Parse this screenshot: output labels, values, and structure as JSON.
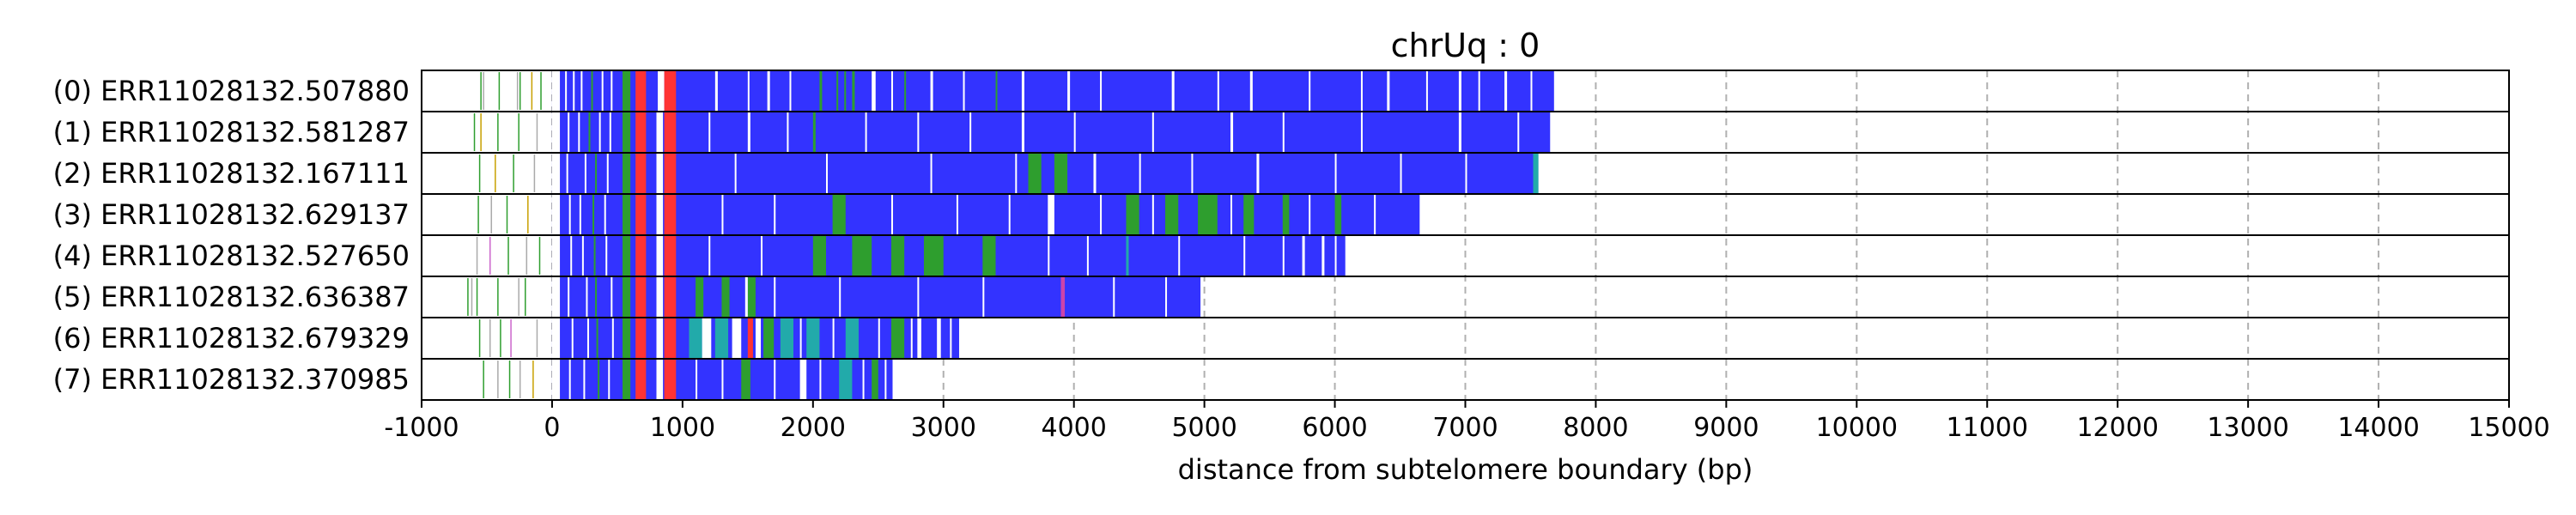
{
  "chart_data": {
    "type": "bar",
    "title": "chrUq : 0",
    "xlabel": "distance from subtelomere boundary (bp)",
    "ylabel": "",
    "xlim": [
      -1000,
      15000
    ],
    "xticks": [
      -1000,
      0,
      1000,
      2000,
      3000,
      4000,
      5000,
      6000,
      7000,
      8000,
      9000,
      10000,
      11000,
      12000,
      13000,
      14000,
      15000
    ],
    "xtick_labels": [
      "-1000",
      "0",
      "1000",
      "2000",
      "3000",
      "4000",
      "5000",
      "6000",
      "7000",
      "8000",
      "9000",
      "10000",
      "11000",
      "12000",
      "13000",
      "14000",
      "15000"
    ],
    "grid": "vertical dashed",
    "colors": {
      "base": "#3333ff",
      "red": "#ff3333",
      "green": "#2e9e2e",
      "teal": "#22aaaa",
      "white": "#ffffff",
      "gray": "#aaaaaa"
    },
    "reads": [
      {
        "label": "(0) ERR11028132.507880",
        "start": 0,
        "end": 7680,
        "pre": [
          [
            -550,
            "green"
          ],
          [
            -530,
            "gray"
          ],
          [
            -410,
            "green"
          ],
          [
            -270,
            "gray"
          ],
          [
            -250,
            "green"
          ],
          [
            -160,
            "#c8a000"
          ],
          [
            -90,
            "green"
          ]
        ],
        "blocks": [
          [
            0,
            60,
            "white"
          ],
          [
            540,
            600,
            "green"
          ],
          [
            640,
            720,
            "red"
          ],
          [
            810,
            860,
            "white"
          ],
          [
            860,
            950,
            "red"
          ],
          [
            1250,
            1270,
            "white"
          ],
          [
            1650,
            1670,
            "white"
          ],
          [
            2050,
            2070,
            "green"
          ],
          [
            2300,
            2320,
            "green"
          ],
          [
            2450,
            2480,
            "white"
          ],
          [
            2900,
            2920,
            "white"
          ],
          [
            3600,
            3620,
            "white"
          ],
          [
            3950,
            3970,
            "white"
          ],
          [
            4750,
            4770,
            "white"
          ],
          [
            5350,
            5370,
            "white"
          ],
          [
            6400,
            6420,
            "white"
          ],
          [
            6950,
            6970,
            "white"
          ],
          [
            7300,
            7320,
            "white"
          ]
        ],
        "lines": [
          [
            100,
            "white"
          ],
          [
            160,
            "white"
          ],
          [
            220,
            "white"
          ],
          [
            300,
            "green"
          ],
          [
            380,
            "white"
          ],
          [
            450,
            "white"
          ],
          [
            1500,
            "white"
          ],
          [
            1820,
            "white"
          ],
          [
            2180,
            "green"
          ],
          [
            2240,
            "green"
          ],
          [
            2600,
            "white"
          ],
          [
            2700,
            "green"
          ],
          [
            3150,
            "white"
          ],
          [
            3400,
            "green"
          ],
          [
            4200,
            "white"
          ],
          [
            5100,
            "white"
          ],
          [
            5800,
            "white"
          ],
          [
            6200,
            "white"
          ],
          [
            6700,
            "white"
          ],
          [
            7100,
            "white"
          ],
          [
            7500,
            "white"
          ]
        ]
      },
      {
        "label": "(1) ERR11028132.581287",
        "start": 0,
        "end": 7650,
        "pre": [
          [
            -600,
            "green"
          ],
          [
            -550,
            "#c8a000"
          ],
          [
            -420,
            "green"
          ],
          [
            -260,
            "green"
          ],
          [
            -120,
            "gray"
          ]
        ],
        "blocks": [
          [
            0,
            60,
            "white"
          ],
          [
            540,
            600,
            "green"
          ],
          [
            640,
            720,
            "red"
          ],
          [
            800,
            850,
            "white"
          ],
          [
            860,
            950,
            "red"
          ],
          [
            1500,
            1520,
            "white"
          ],
          [
            2000,
            2020,
            "green"
          ],
          [
            3600,
            3620,
            "white"
          ],
          [
            5200,
            5220,
            "white"
          ],
          [
            6950,
            6970,
            "white"
          ]
        ],
        "lines": [
          [
            120,
            "white"
          ],
          [
            200,
            "white"
          ],
          [
            280,
            "green"
          ],
          [
            360,
            "white"
          ],
          [
            440,
            "white"
          ],
          [
            1200,
            "white"
          ],
          [
            1800,
            "white"
          ],
          [
            2400,
            "white"
          ],
          [
            2800,
            "white"
          ],
          [
            3200,
            "white"
          ],
          [
            4000,
            "white"
          ],
          [
            4600,
            "white"
          ],
          [
            5600,
            "white"
          ],
          [
            6200,
            "white"
          ],
          [
            7400,
            "white"
          ]
        ]
      },
      {
        "label": "(2) ERR11028132.167111",
        "start": 0,
        "end": 7560,
        "pre": [
          [
            -560,
            "green"
          ],
          [
            -440,
            "#c8a000"
          ],
          [
            -300,
            "green"
          ],
          [
            -140,
            "gray"
          ]
        ],
        "blocks": [
          [
            0,
            60,
            "white"
          ],
          [
            540,
            600,
            "green"
          ],
          [
            640,
            720,
            "red"
          ],
          [
            800,
            850,
            "white"
          ],
          [
            860,
            950,
            "red"
          ],
          [
            3650,
            3750,
            "green"
          ],
          [
            3850,
            3950,
            "green"
          ],
          [
            4150,
            4170,
            "white"
          ],
          [
            5400,
            5420,
            "white"
          ],
          [
            7520,
            7560,
            "teal"
          ]
        ],
        "lines": [
          [
            110,
            "white"
          ],
          [
            250,
            "white"
          ],
          [
            330,
            "green"
          ],
          [
            420,
            "white"
          ],
          [
            1400,
            "white"
          ],
          [
            2100,
            "white"
          ],
          [
            2900,
            "white"
          ],
          [
            3550,
            "white"
          ],
          [
            4500,
            "white"
          ],
          [
            4900,
            "white"
          ],
          [
            6000,
            "white"
          ],
          [
            6500,
            "white"
          ],
          [
            7000,
            "white"
          ]
        ]
      },
      {
        "label": "(3) ERR11028132.629137",
        "start": 0,
        "end": 6650,
        "pre": [
          [
            -570,
            "green"
          ],
          [
            -470,
            "gray"
          ],
          [
            -350,
            "green"
          ],
          [
            -190,
            "#c8a000"
          ]
        ],
        "blocks": [
          [
            0,
            60,
            "white"
          ],
          [
            540,
            600,
            "green"
          ],
          [
            640,
            720,
            "red"
          ],
          [
            800,
            850,
            "white"
          ],
          [
            860,
            950,
            "red"
          ],
          [
            2150,
            2250,
            "green"
          ],
          [
            3800,
            3850,
            "white"
          ],
          [
            4400,
            4500,
            "green"
          ],
          [
            4700,
            4800,
            "green"
          ],
          [
            4950,
            5100,
            "green"
          ],
          [
            5300,
            5380,
            "green"
          ],
          [
            5600,
            5650,
            "green"
          ],
          [
            6000,
            6050,
            "green"
          ]
        ],
        "lines": [
          [
            130,
            "white"
          ],
          [
            210,
            "white"
          ],
          [
            310,
            "green"
          ],
          [
            400,
            "white"
          ],
          [
            1300,
            "white"
          ],
          [
            1700,
            "white"
          ],
          [
            2600,
            "white"
          ],
          [
            3100,
            "white"
          ],
          [
            3500,
            "white"
          ],
          [
            4200,
            "white"
          ],
          [
            4600,
            "white"
          ],
          [
            5200,
            "white"
          ],
          [
            5800,
            "white"
          ],
          [
            6300,
            "white"
          ]
        ]
      },
      {
        "label": "(4) ERR11028132.527650",
        "start": 0,
        "end": 6080,
        "pre": [
          [
            -580,
            "gray"
          ],
          [
            -480,
            "#cc66cc"
          ],
          [
            -340,
            "green"
          ],
          [
            -200,
            "gray"
          ],
          [
            -100,
            "green"
          ]
        ],
        "blocks": [
          [
            0,
            60,
            "white"
          ],
          [
            540,
            600,
            "green"
          ],
          [
            640,
            720,
            "red"
          ],
          [
            800,
            850,
            "white"
          ],
          [
            860,
            950,
            "red"
          ],
          [
            2000,
            2100,
            "green"
          ],
          [
            2300,
            2450,
            "green"
          ],
          [
            2600,
            2700,
            "green"
          ],
          [
            2850,
            3000,
            "green"
          ],
          [
            3300,
            3400,
            "green"
          ],
          [
            4400,
            4420,
            "teal"
          ],
          [
            5750,
            5770,
            "white"
          ],
          [
            5900,
            5920,
            "white"
          ]
        ],
        "lines": [
          [
            140,
            "white"
          ],
          [
            230,
            "white"
          ],
          [
            320,
            "green"
          ],
          [
            410,
            "white"
          ],
          [
            1200,
            "white"
          ],
          [
            1600,
            "white"
          ],
          [
            3800,
            "white"
          ],
          [
            4100,
            "white"
          ],
          [
            4800,
            "white"
          ],
          [
            5300,
            "white"
          ],
          [
            5600,
            "white"
          ],
          [
            6000,
            "white"
          ]
        ]
      },
      {
        "label": "(5) ERR11028132.636387",
        "start": 0,
        "end": 4970,
        "pre": [
          [
            -650,
            "green"
          ],
          [
            -620,
            "gray"
          ],
          [
            -580,
            "green"
          ],
          [
            -420,
            "green"
          ],
          [
            -260,
            "gray"
          ],
          [
            -210,
            "green"
          ]
        ],
        "blocks": [
          [
            0,
            60,
            "white"
          ],
          [
            540,
            600,
            "green"
          ],
          [
            640,
            720,
            "red"
          ],
          [
            800,
            850,
            "white"
          ],
          [
            860,
            950,
            "red"
          ],
          [
            1100,
            1160,
            "green"
          ],
          [
            1300,
            1360,
            "green"
          ],
          [
            1500,
            1560,
            "green"
          ],
          [
            1480,
            1500,
            "white"
          ],
          [
            3900,
            3930,
            "#cc44aa"
          ]
        ],
        "lines": [
          [
            120,
            "white"
          ],
          [
            260,
            "white"
          ],
          [
            330,
            "green"
          ],
          [
            450,
            "white"
          ],
          [
            1700,
            "white"
          ],
          [
            2200,
            "white"
          ],
          [
            2800,
            "white"
          ],
          [
            3300,
            "white"
          ],
          [
            4300,
            "white"
          ],
          [
            4700,
            "white"
          ]
        ]
      },
      {
        "label": "(6) ERR11028132.679329",
        "start": 0,
        "end": 3120,
        "pre": [
          [
            -560,
            "green"
          ],
          [
            -480,
            "gray"
          ],
          [
            -400,
            "green"
          ],
          [
            -320,
            "#cc66cc"
          ],
          [
            -120,
            "gray"
          ]
        ],
        "blocks": [
          [
            0,
            60,
            "white"
          ],
          [
            540,
            600,
            "green"
          ],
          [
            640,
            720,
            "red"
          ],
          [
            800,
            850,
            "white"
          ],
          [
            860,
            950,
            "red"
          ],
          [
            1050,
            1150,
            "teal"
          ],
          [
            1150,
            1220,
            "white"
          ],
          [
            1250,
            1350,
            "teal"
          ],
          [
            1380,
            1450,
            "white"
          ],
          [
            1500,
            1540,
            "red"
          ],
          [
            1560,
            1600,
            "white"
          ],
          [
            1620,
            1700,
            "green"
          ],
          [
            1750,
            1850,
            "teal"
          ],
          [
            1950,
            2050,
            "teal"
          ],
          [
            2250,
            2350,
            "teal"
          ],
          [
            2600,
            2700,
            "green"
          ],
          [
            2800,
            2830,
            "white"
          ],
          [
            2950,
            2980,
            "white"
          ]
        ],
        "lines": [
          [
            150,
            "white"
          ],
          [
            270,
            "white"
          ],
          [
            340,
            "green"
          ],
          [
            460,
            "white"
          ],
          [
            1900,
            "white"
          ],
          [
            2150,
            "white"
          ],
          [
            2500,
            "white"
          ],
          [
            2750,
            "white"
          ],
          [
            3050,
            "white"
          ]
        ]
      },
      {
        "label": "(7) ERR11028132.370985",
        "start": 0,
        "end": 2610,
        "pre": [
          [
            -530,
            "green"
          ],
          [
            -420,
            "gray"
          ],
          [
            -330,
            "green"
          ],
          [
            -250,
            "gray"
          ],
          [
            -150,
            "#c8a000"
          ]
        ],
        "blocks": [
          [
            0,
            60,
            "white"
          ],
          [
            540,
            600,
            "green"
          ],
          [
            640,
            720,
            "red"
          ],
          [
            800,
            850,
            "white"
          ],
          [
            860,
            950,
            "red"
          ],
          [
            1450,
            1520,
            "green"
          ],
          [
            1900,
            1950,
            "white"
          ],
          [
            2200,
            2300,
            "teal"
          ],
          [
            2450,
            2500,
            "green"
          ]
        ],
        "lines": [
          [
            130,
            "white"
          ],
          [
            240,
            "white"
          ],
          [
            350,
            "green"
          ],
          [
            430,
            "white"
          ],
          [
            1100,
            "white"
          ],
          [
            1300,
            "white"
          ],
          [
            1700,
            "white"
          ],
          [
            2050,
            "white"
          ],
          [
            2380,
            "white"
          ],
          [
            2550,
            "white"
          ]
        ]
      }
    ]
  }
}
